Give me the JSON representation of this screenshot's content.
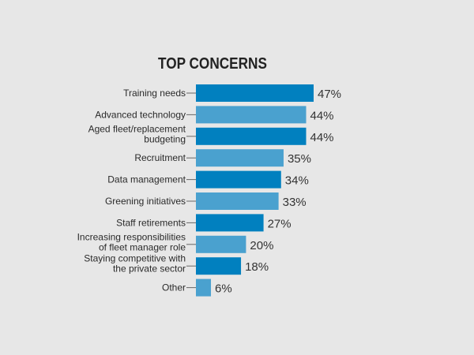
{
  "chart_data": {
    "type": "bar",
    "orientation": "horizontal",
    "title": "TOP CONCERNS",
    "xlabel": "",
    "ylabel": "",
    "grid": false,
    "value_suffix": "%",
    "xlim": [
      0,
      47
    ],
    "colors": [
      "#0180bf",
      "#4aa1cf"
    ],
    "categories": [
      [
        "Training needs"
      ],
      [
        "Advanced technology"
      ],
      [
        "Aged fleet/replacement",
        "budgeting"
      ],
      [
        "Recruitment"
      ],
      [
        "Data management"
      ],
      [
        "Greening initiatives"
      ],
      [
        "Staff retirements"
      ],
      [
        "Increasing responsibilities",
        "of fleet manager role"
      ],
      [
        "Staying competitive with",
        "the private sector"
      ],
      [
        "Other"
      ]
    ],
    "values": [
      47,
      44,
      44,
      35,
      34,
      33,
      27,
      20,
      18,
      6
    ]
  }
}
